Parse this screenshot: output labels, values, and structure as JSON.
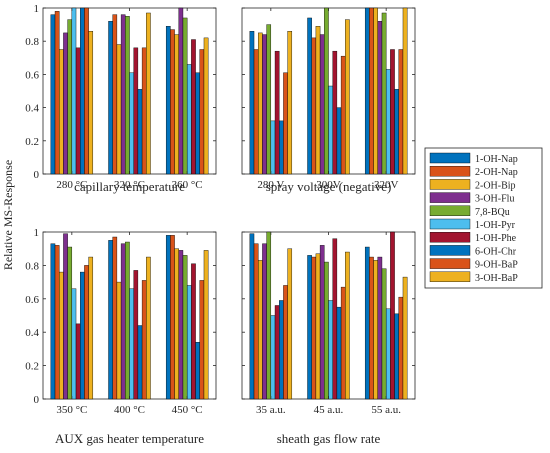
{
  "figure": {
    "ylabel": "Relative MS-Response"
  },
  "chart_data": [
    {
      "type": "bar",
      "xlabel": "capillary temperature",
      "categories": [
        "280 °C",
        "320 °C",
        "360 °C"
      ],
      "ylim": [
        0,
        1
      ],
      "yticks": [
        "0",
        "0.2",
        "0.4",
        "0.6",
        "0.8",
        "1"
      ],
      "series": [
        {
          "name": "1-OH-Nap",
          "values": [
            0.96,
            0.92,
            0.89
          ]
        },
        {
          "name": "2-OH-Nap",
          "values": [
            0.98,
            0.96,
            0.87
          ]
        },
        {
          "name": "2-OH-Bip",
          "values": [
            0.75,
            0.78,
            0.84
          ]
        },
        {
          "name": "3-OH-Flu",
          "values": [
            0.85,
            0.96,
            1.0
          ]
        },
        {
          "name": "7,8-BQu",
          "values": [
            0.93,
            0.95,
            0.94
          ]
        },
        {
          "name": "1-OH-Pyr",
          "values": [
            1.0,
            0.61,
            0.66
          ]
        },
        {
          "name": "1-OH-Phe",
          "values": [
            0.76,
            0.76,
            0.81
          ]
        },
        {
          "name": "6-OH-Chr",
          "values": [
            1.0,
            0.51,
            0.61
          ]
        },
        {
          "name": "9-OH-BaP",
          "values": [
            1.0,
            0.76,
            0.75
          ]
        },
        {
          "name": "3-OH-BaP",
          "values": [
            0.86,
            0.97,
            0.82
          ]
        }
      ]
    },
    {
      "type": "bar",
      "xlabel": "spray voltage (negative)",
      "categories": [
        "280 V",
        "300V",
        "320V"
      ],
      "ylim": [
        0,
        1
      ],
      "yticks": [
        "0",
        "0.2",
        "0.4",
        "0.6",
        "0.8",
        "1"
      ],
      "series": [
        {
          "name": "1-OH-Nap",
          "values": [
            0.86,
            0.94,
            1.0
          ]
        },
        {
          "name": "2-OH-Nap",
          "values": [
            0.75,
            0.82,
            1.0
          ]
        },
        {
          "name": "2-OH-Bip",
          "values": [
            0.85,
            0.89,
            1.0
          ]
        },
        {
          "name": "3-OH-Flu",
          "values": [
            0.84,
            0.84,
            0.92
          ]
        },
        {
          "name": "7,8-BQu",
          "values": [
            0.9,
            1.0,
            0.97
          ]
        },
        {
          "name": "1-OH-Pyr",
          "values": [
            0.32,
            0.53,
            0.63
          ]
        },
        {
          "name": "1-OH-Phe",
          "values": [
            0.74,
            0.74,
            0.75
          ]
        },
        {
          "name": "6-OH-Chr",
          "values": [
            0.32,
            0.4,
            0.51
          ]
        },
        {
          "name": "9-OH-BaP",
          "values": [
            0.61,
            0.71,
            0.75
          ]
        },
        {
          "name": "3-OH-BaP",
          "values": [
            0.86,
            0.93,
            1.0
          ]
        }
      ]
    },
    {
      "type": "bar",
      "xlabel": "AUX gas heater temperature",
      "categories": [
        "350 °C",
        "400 °C",
        "450 °C"
      ],
      "ylim": [
        0,
        1
      ],
      "yticks": [
        "0",
        "0.2",
        "0.4",
        "0.6",
        "0.8",
        "1"
      ],
      "series": [
        {
          "name": "1-OH-Nap",
          "values": [
            0.93,
            0.95,
            0.98
          ]
        },
        {
          "name": "2-OH-Nap",
          "values": [
            0.92,
            0.97,
            0.98
          ]
        },
        {
          "name": "2-OH-Bip",
          "values": [
            0.76,
            0.7,
            0.9
          ]
        },
        {
          "name": "3-OH-Flu",
          "values": [
            0.99,
            0.93,
            0.89
          ]
        },
        {
          "name": "7,8-BQu",
          "values": [
            0.91,
            0.94,
            0.86
          ]
        },
        {
          "name": "1-OH-Pyr",
          "values": [
            0.66,
            0.66,
            0.68
          ]
        },
        {
          "name": "1-OH-Phe",
          "values": [
            0.45,
            0.77,
            0.81
          ]
        },
        {
          "name": "6-OH-Chr",
          "values": [
            0.76,
            0.44,
            0.34
          ]
        },
        {
          "name": "9-OH-BaP",
          "values": [
            0.8,
            0.71,
            0.71
          ]
        },
        {
          "name": "3-OH-BaP",
          "values": [
            0.85,
            0.85,
            0.89
          ]
        }
      ]
    },
    {
      "type": "bar",
      "xlabel": "sheath  gas flow rate",
      "categories": [
        "35 a.u.",
        "45 a.u.",
        "55 a.u."
      ],
      "ylim": [
        0,
        1
      ],
      "yticks": [
        "0",
        "0.2",
        "0.4",
        "0.6",
        "0.8",
        "1"
      ],
      "series": [
        {
          "name": "1-OH-Nap",
          "values": [
            0.99,
            0.86,
            0.91
          ]
        },
        {
          "name": "2-OH-Nap",
          "values": [
            0.93,
            0.85,
            0.85
          ]
        },
        {
          "name": "2-OH-Bip",
          "values": [
            0.83,
            0.87,
            0.83
          ]
        },
        {
          "name": "3-OH-Flu",
          "values": [
            0.93,
            0.92,
            0.85
          ]
        },
        {
          "name": "7,8-BQu",
          "values": [
            1.0,
            0.82,
            0.78
          ]
        },
        {
          "name": "1-OH-Pyr",
          "values": [
            0.5,
            0.59,
            0.54
          ]
        },
        {
          "name": "1-OH-Phe",
          "values": [
            0.56,
            0.96,
            1.0
          ]
        },
        {
          "name": "6-OH-Chr",
          "values": [
            0.59,
            0.55,
            0.51
          ]
        },
        {
          "name": "9-OH-BaP",
          "values": [
            0.68,
            0.67,
            0.61
          ]
        },
        {
          "name": "3-OH-BaP",
          "values": [
            0.9,
            0.88,
            0.73
          ]
        }
      ]
    }
  ],
  "legend": {
    "placement": "right",
    "entries": [
      "1-OH-Nap",
      "2-OH-Nap",
      "2-OH-Bip",
      "3-OH-Flu",
      "7,8-BQu",
      "1-OH-Pyr",
      "1-OH-Phe",
      "6-OH-Chr",
      "9-OH-BaP",
      "3-OH-BaP"
    ]
  },
  "colors": [
    "#0072BD",
    "#D95319",
    "#EDB120",
    "#7E2F8E",
    "#77AC30",
    "#4DBEEE",
    "#A2142F",
    "#0072BD",
    "#D95319",
    "#EDB120"
  ]
}
